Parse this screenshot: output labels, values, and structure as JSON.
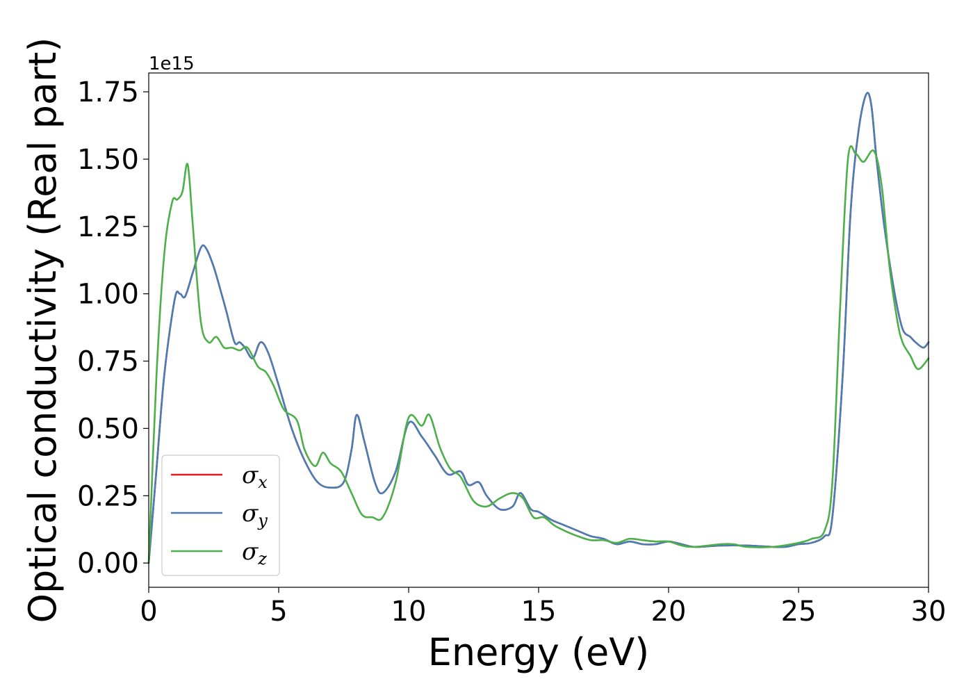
{
  "chart_data": {
    "type": "line",
    "title": "",
    "xlabel": "Energy (eV)",
    "ylabel": "Optical conductivity (Real part)",
    "y_offset_text": "1e15",
    "xlim": [
      0,
      30
    ],
    "ylim": [
      -0.09,
      1.82
    ],
    "xticks": [
      0,
      5,
      10,
      15,
      20,
      25,
      30
    ],
    "xtick_labels": [
      "0",
      "5",
      "10",
      "15",
      "20",
      "25",
      "30"
    ],
    "yticks": [
      0.0,
      0.25,
      0.5,
      0.75,
      1.0,
      1.25,
      1.5,
      1.75
    ],
    "ytick_labels": [
      "0.00",
      "0.25",
      "0.50",
      "0.75",
      "1.00",
      "1.25",
      "1.50",
      "1.75"
    ],
    "grid": false,
    "legend_position": "lower-left",
    "series": [
      {
        "name": "σ_x",
        "symbol": "σ",
        "subscript": "x",
        "color": "#e41a1c",
        "x": [
          0,
          0.3,
          0.6,
          1.0,
          1.2,
          1.4,
          1.7,
          2.0,
          2.2,
          2.5,
          2.8,
          3.0,
          3.3,
          3.5,
          3.7,
          4.0,
          4.3,
          4.6,
          5.0,
          5.5,
          6.0,
          6.5,
          7.0,
          7.5,
          7.8,
          8.0,
          8.3,
          8.7,
          9.0,
          9.5,
          10.0,
          10.5,
          11.0,
          11.5,
          12.0,
          12.3,
          12.7,
          13.0,
          13.5,
          14.0,
          14.3,
          14.7,
          15.0,
          15.5,
          16.0,
          16.5,
          17.0,
          17.5,
          18.0,
          18.5,
          19.0,
          19.5,
          20.0,
          20.5,
          21.0,
          22.0,
          23.0,
          24.0,
          24.5,
          25.0,
          25.5,
          26.0,
          26.3,
          26.7,
          27.0,
          27.3,
          27.6,
          27.8,
          28.0,
          28.3,
          28.7,
          29.0,
          29.3,
          29.5,
          29.8,
          30.0
        ],
        "y": [
          0.0,
          0.35,
          0.7,
          0.98,
          1.0,
          0.99,
          1.08,
          1.17,
          1.17,
          1.1,
          1.0,
          0.93,
          0.82,
          0.82,
          0.8,
          0.76,
          0.82,
          0.78,
          0.66,
          0.5,
          0.38,
          0.3,
          0.28,
          0.3,
          0.42,
          0.55,
          0.45,
          0.3,
          0.26,
          0.34,
          0.52,
          0.47,
          0.4,
          0.33,
          0.34,
          0.29,
          0.3,
          0.25,
          0.2,
          0.21,
          0.26,
          0.2,
          0.19,
          0.16,
          0.14,
          0.12,
          0.1,
          0.09,
          0.07,
          0.08,
          0.07,
          0.07,
          0.08,
          0.07,
          0.06,
          0.065,
          0.065,
          0.06,
          0.06,
          0.07,
          0.075,
          0.1,
          0.17,
          0.7,
          1.3,
          1.6,
          1.74,
          1.7,
          1.5,
          1.25,
          1.0,
          0.87,
          0.84,
          0.82,
          0.8,
          0.82
        ]
      },
      {
        "name": "σ_y",
        "symbol": "σ",
        "subscript": "y",
        "color": "#4a7db5",
        "x": [
          0,
          0.3,
          0.6,
          1.0,
          1.2,
          1.4,
          1.7,
          2.0,
          2.2,
          2.5,
          2.8,
          3.0,
          3.3,
          3.5,
          3.7,
          4.0,
          4.3,
          4.6,
          5.0,
          5.5,
          6.0,
          6.5,
          7.0,
          7.5,
          7.8,
          8.0,
          8.3,
          8.7,
          9.0,
          9.5,
          10.0,
          10.5,
          11.0,
          11.5,
          12.0,
          12.3,
          12.7,
          13.0,
          13.5,
          14.0,
          14.3,
          14.7,
          15.0,
          15.5,
          16.0,
          16.5,
          17.0,
          17.5,
          18.0,
          18.5,
          19.0,
          19.5,
          20.0,
          20.5,
          21.0,
          22.0,
          23.0,
          24.0,
          24.5,
          25.0,
          25.5,
          26.0,
          26.3,
          26.7,
          27.0,
          27.3,
          27.6,
          27.8,
          28.0,
          28.3,
          28.7,
          29.0,
          29.3,
          29.5,
          29.8,
          30.0
        ],
        "y": [
          0.0,
          0.35,
          0.7,
          0.98,
          1.0,
          0.99,
          1.08,
          1.17,
          1.17,
          1.1,
          1.0,
          0.93,
          0.82,
          0.82,
          0.8,
          0.76,
          0.82,
          0.78,
          0.66,
          0.5,
          0.38,
          0.3,
          0.28,
          0.3,
          0.42,
          0.55,
          0.45,
          0.3,
          0.26,
          0.34,
          0.52,
          0.47,
          0.4,
          0.33,
          0.34,
          0.29,
          0.3,
          0.25,
          0.2,
          0.21,
          0.26,
          0.2,
          0.19,
          0.16,
          0.14,
          0.12,
          0.1,
          0.09,
          0.07,
          0.08,
          0.07,
          0.07,
          0.08,
          0.07,
          0.06,
          0.065,
          0.065,
          0.06,
          0.06,
          0.07,
          0.075,
          0.1,
          0.17,
          0.7,
          1.3,
          1.6,
          1.74,
          1.7,
          1.5,
          1.25,
          1.0,
          0.87,
          0.84,
          0.82,
          0.8,
          0.82
        ]
      },
      {
        "name": "σ_z",
        "symbol": "σ",
        "subscript": "z",
        "color": "#4daf4a",
        "x": [
          0,
          0.3,
          0.6,
          0.9,
          1.1,
          1.3,
          1.5,
          1.7,
          2.0,
          2.3,
          2.6,
          2.9,
          3.2,
          3.5,
          3.8,
          4.2,
          4.5,
          4.8,
          5.2,
          5.7,
          6.0,
          6.4,
          6.7,
          7.0,
          7.4,
          7.8,
          8.2,
          8.6,
          9.0,
          9.5,
          10.0,
          10.5,
          10.8,
          11.2,
          11.6,
          12.0,
          12.5,
          13.0,
          13.5,
          14.0,
          14.4,
          14.8,
          15.2,
          15.6,
          16.0,
          16.5,
          17.0,
          17.5,
          18.0,
          18.5,
          19.0,
          19.5,
          20.0,
          20.5,
          21.0,
          22.0,
          22.5,
          23.0,
          24.0,
          25.0,
          25.5,
          26.0,
          26.3,
          26.6,
          26.9,
          27.2,
          27.5,
          27.9,
          28.2,
          28.5,
          28.8,
          29.0,
          29.3,
          29.6,
          30.0
        ],
        "y": [
          0.0,
          0.7,
          1.15,
          1.34,
          1.35,
          1.38,
          1.48,
          1.25,
          0.9,
          0.82,
          0.84,
          0.8,
          0.8,
          0.79,
          0.8,
          0.73,
          0.71,
          0.66,
          0.57,
          0.53,
          0.42,
          0.36,
          0.41,
          0.37,
          0.34,
          0.26,
          0.18,
          0.17,
          0.17,
          0.3,
          0.54,
          0.51,
          0.55,
          0.43,
          0.35,
          0.32,
          0.23,
          0.21,
          0.24,
          0.26,
          0.24,
          0.17,
          0.17,
          0.14,
          0.12,
          0.1,
          0.085,
          0.085,
          0.075,
          0.09,
          0.085,
          0.08,
          0.08,
          0.065,
          0.06,
          0.07,
          0.07,
          0.06,
          0.06,
          0.075,
          0.09,
          0.12,
          0.3,
          0.95,
          1.5,
          1.52,
          1.49,
          1.53,
          1.4,
          1.1,
          0.9,
          0.82,
          0.77,
          0.72,
          0.76
        ]
      }
    ]
  }
}
